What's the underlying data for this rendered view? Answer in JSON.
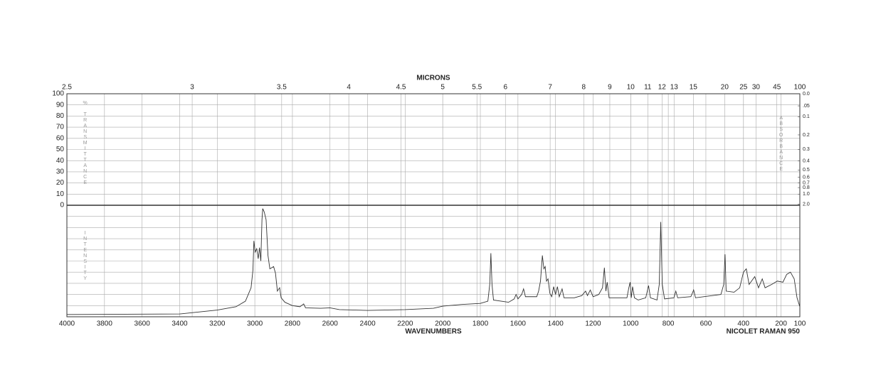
{
  "chart_data": {
    "type": "line",
    "x2label": "MICRONS",
    "xlabel": "WAVENUMBERS",
    "annotation": "NICOLET RAMAN 950",
    "ylabel": "% TRANSMITTANCE",
    "y2label": "ABSORBANCE",
    "y3label": "INTENSITY",
    "xlim": [
      4000,
      100
    ],
    "xticks": [
      4000,
      3800,
      3600,
      3400,
      3200,
      3000,
      2800,
      2600,
      2400,
      2200,
      2000,
      1800,
      1600,
      1400,
      1200,
      1000,
      800,
      600,
      400,
      200,
      100
    ],
    "x2ticks": [
      2.5,
      3,
      3.5,
      4,
      4.5,
      5,
      5.5,
      6,
      7,
      8,
      9,
      10,
      11,
      12,
      13,
      15,
      20,
      25,
      30,
      45,
      100
    ],
    "ylim": [
      0,
      100
    ],
    "yticks": [
      0,
      10,
      20,
      30,
      40,
      50,
      60,
      70,
      80,
      90,
      100
    ],
    "y2ticks": [
      {
        "value": 0,
        "label": "0.0"
      },
      {
        "value": 0.05,
        "label": ".05"
      },
      0.1,
      0.2,
      0.3,
      0.4,
      0.5,
      0.6,
      0.7,
      0.8,
      {
        "value": 1,
        "label": "1.0"
      },
      {
        "value": 2,
        "label": "2.0"
      }
    ],
    "grid": true,
    "color": "#333333",
    "x": [
      4000,
      3400,
      3200,
      3100,
      3050,
      3020,
      3010,
      3005,
      2998,
      2990,
      2982,
      2975,
      2968,
      2962,
      2958,
      2950,
      2940,
      2930,
      2920,
      2900,
      2890,
      2880,
      2868,
      2860,
      2840,
      2800,
      2760,
      2740,
      2730,
      2650,
      2600,
      2550,
      2400,
      2200,
      2050,
      2000,
      1900,
      1800,
      1760,
      1750,
      1744,
      1738,
      1730,
      1650,
      1620,
      1610,
      1600,
      1580,
      1570,
      1560,
      1500,
      1490,
      1480,
      1470,
      1462,
      1455,
      1448,
      1440,
      1430,
      1420,
      1410,
      1400,
      1390,
      1380,
      1365,
      1355,
      1300,
      1260,
      1240,
      1230,
      1215,
      1200,
      1170,
      1150,
      1140,
      1132,
      1125,
      1115,
      1020,
      1010,
      1003,
      997,
      990,
      980,
      960,
      920,
      905,
      895,
      860,
      848,
      840,
      832,
      820,
      770,
      760,
      750,
      680,
      665,
      655,
      520,
      505,
      498,
      492,
      450,
      420,
      400,
      385,
      370,
      340,
      320,
      300,
      285,
      250,
      220,
      190,
      170,
      150,
      130,
      115,
      100
    ],
    "values": [
      2,
      2.5,
      6,
      9,
      14,
      26,
      42,
      68,
      58,
      61,
      52,
      62,
      50,
      87,
      97,
      94,
      87,
      55,
      43,
      45,
      39,
      23,
      26,
      17,
      13,
      10,
      9,
      11.5,
      8,
      7.6,
      8,
      6.4,
      5.7,
      6.4,
      7.6,
      9.5,
      11,
      12,
      14,
      29,
      57,
      29,
      15,
      13,
      16,
      20,
      16,
      20,
      25,
      18,
      18,
      23,
      32,
      55,
      43,
      45,
      32,
      34,
      21,
      18,
      27,
      20,
      27,
      18,
      25,
      17,
      17,
      19,
      23,
      19,
      24,
      18,
      20,
      26,
      44,
      23,
      31,
      17,
      17,
      26,
      31,
      17,
      27,
      17,
      15,
      17,
      28,
      17,
      15,
      29,
      85,
      29,
      16,
      17,
      23,
      17,
      18,
      24,
      17,
      20,
      29,
      56,
      23,
      22,
      26,
      40,
      43,
      29,
      36,
      26,
      34,
      26,
      29,
      32,
      31,
      38,
      40,
      34,
      17,
      9
    ]
  }
}
